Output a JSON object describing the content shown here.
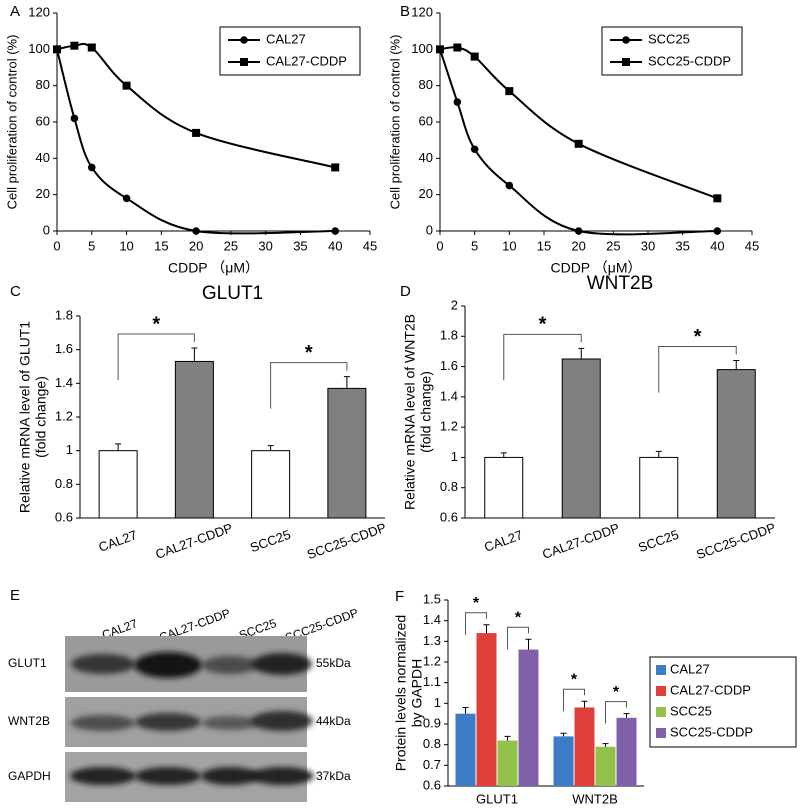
{
  "chart_data": [
    {
      "panel_label": "A",
      "type": "line",
      "x": [
        0,
        2.5,
        5,
        10,
        20,
        40
      ],
      "series": [
        {
          "name": "CAL27",
          "color": "#000000",
          "marker": "circle",
          "values": [
            100,
            62,
            35,
            18,
            0,
            0
          ]
        },
        {
          "name": "CAL27-CDDP",
          "color": "#000000",
          "marker": "square",
          "values": [
            100,
            102,
            101,
            80,
            54,
            35
          ]
        }
      ],
      "xlabel": "CDDP （μM）",
      "ylabel": "Cell proliferation of control (%)",
      "xlim": [
        0,
        45
      ],
      "xticks": [
        0,
        5,
        10,
        15,
        20,
        25,
        30,
        35,
        40,
        45
      ],
      "ylim": [
        0,
        120
      ],
      "yticks": [
        0,
        20,
        40,
        60,
        80,
        100,
        120
      ],
      "legend": "upper right"
    },
    {
      "panel_label": "B",
      "type": "line",
      "x": [
        0,
        2.5,
        5,
        10,
        20,
        40
      ],
      "series": [
        {
          "name": "SCC25",
          "color": "#000000",
          "marker": "circle",
          "values": [
            100,
            71,
            45,
            25,
            0,
            0
          ]
        },
        {
          "name": "SCC25-CDDP",
          "color": "#000000",
          "marker": "square",
          "values": [
            100,
            101,
            96,
            77,
            48,
            18
          ]
        }
      ],
      "xlabel": "CDDP （μM）",
      "ylabel": "Cell proliferation of control (%)",
      "xlim": [
        0,
        45
      ],
      "xticks": [
        0,
        5,
        10,
        15,
        20,
        25,
        30,
        35,
        40,
        45
      ],
      "ylim": [
        0,
        120
      ],
      "yticks": [
        0,
        20,
        40,
        60,
        80,
        100,
        120
      ],
      "legend": "upper right"
    },
    {
      "panel_label": "C",
      "type": "bar",
      "title": "GLUT1",
      "categories": [
        "CAL27",
        "CAL27-CDDP",
        "SCC25",
        "SCC25-CDDP"
      ],
      "values": [
        1,
        1.53,
        1,
        1.37
      ],
      "errors": [
        0.04,
        0.08,
        0.03,
        0.07
      ],
      "colors": [
        "#ffffff",
        "#808080",
        "#ffffff",
        "#808080"
      ],
      "ylabel": [
        "Relative mRNA level of GLUT1",
        "(fold change)"
      ],
      "ylim": [
        0.6,
        1.8
      ],
      "yticks": [
        0.6,
        0.8,
        1,
        1.2,
        1.4,
        1.6,
        1.8
      ],
      "annotations": [
        "*",
        "*"
      ]
    },
    {
      "panel_label": "D",
      "type": "bar",
      "title": "WNT2B",
      "categories": [
        "CAL27",
        "CAL27-CDDP",
        "SCC25",
        "SCC25-CDDP"
      ],
      "values": [
        1,
        1.65,
        1,
        1.58
      ],
      "errors": [
        0.03,
        0.07,
        0.04,
        0.06
      ],
      "colors": [
        "#ffffff",
        "#808080",
        "#ffffff",
        "#808080"
      ],
      "ylabel": [
        "Relative mRNA level of WNT2B",
        "(fold change)"
      ],
      "ylim": [
        0.6,
        2
      ],
      "yticks": [
        0.6,
        0.8,
        1,
        1.2,
        1.4,
        1.6,
        1.8,
        2
      ],
      "annotations": [
        "*",
        "*"
      ]
    },
    {
      "panel_label": "F",
      "type": "bar",
      "categories": [
        "GLUT1",
        "WNT2B"
      ],
      "series": [
        {
          "name": "CAL27",
          "color": "#3d7cc9",
          "values": [
            0.95,
            0.84
          ],
          "errors": [
            0.03,
            0.015
          ]
        },
        {
          "name": "CAL27-CDDP",
          "color": "#e0403a",
          "values": [
            1.34,
            0.98
          ],
          "errors": [
            0.04,
            0.03
          ]
        },
        {
          "name": "SCC25",
          "color": "#92c24a",
          "values": [
            0.82,
            0.79
          ],
          "errors": [
            0.02,
            0.015
          ]
        },
        {
          "name": "SCC25-CDDP",
          "color": "#8060a8",
          "values": [
            1.26,
            0.93
          ],
          "errors": [
            0.05,
            0.02
          ]
        }
      ],
      "ylabel": [
        "Protein levels normalized",
        "by GAPDH"
      ],
      "ylim": [
        0.6,
        1.5
      ],
      "yticks": [
        0.6,
        0.7,
        0.8,
        0.9,
        1,
        1.1,
        1.2,
        1.3,
        1.4,
        1.5
      ],
      "legend": "right",
      "annotations": [
        "*",
        "*",
        "*",
        "*"
      ]
    }
  ],
  "blot": {
    "panel_label": "E",
    "lanes": [
      "CAL27",
      "CAL27-CDDP",
      "SCC25",
      "SCC25-CDDP"
    ],
    "rows": [
      {
        "name": "GLUT1",
        "size": "55kDa"
      },
      {
        "name": "WNT2B",
        "size": "44kDa"
      },
      {
        "name": "GAPDH",
        "size": "37kDa"
      }
    ]
  }
}
